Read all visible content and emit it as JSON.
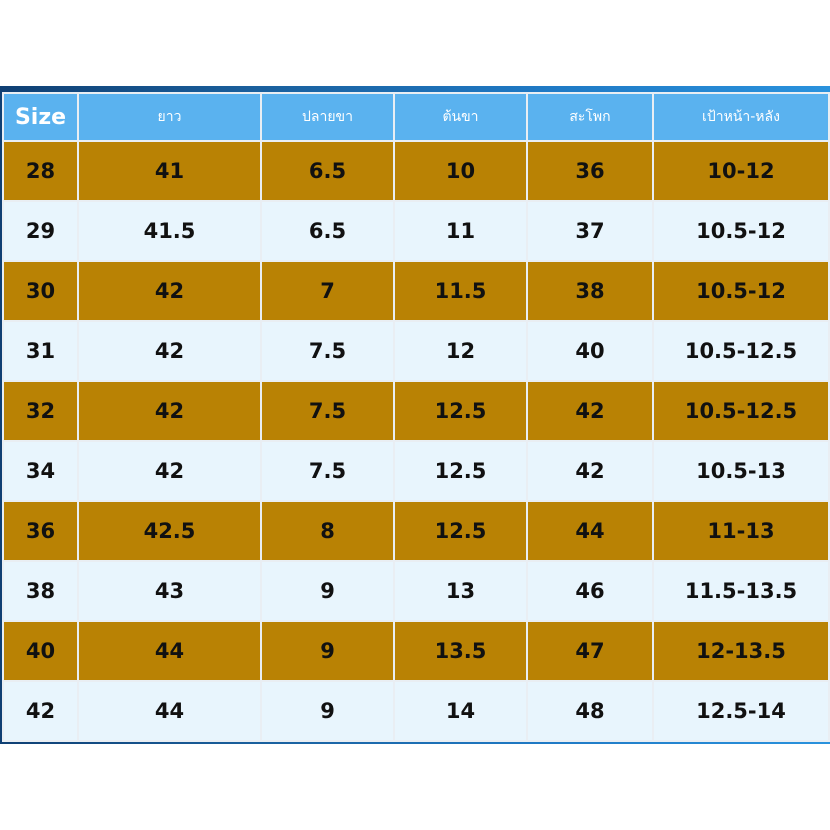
{
  "table": {
    "headers": [
      "Size",
      "ยาว",
      "ปลายขา",
      "ต้นขา",
      "สะโพก",
      "เป้าหน้า-หลัง"
    ],
    "rows": [
      [
        "28",
        "41",
        "6.5",
        "10",
        "36",
        "10-12"
      ],
      [
        "29",
        "41.5",
        "6.5",
        "11",
        "37",
        "10.5-12"
      ],
      [
        "30",
        "42",
        "7",
        "11.5",
        "38",
        "10.5-12"
      ],
      [
        "31",
        "42",
        "7.5",
        "12",
        "40",
        "10.5-12.5"
      ],
      [
        "32",
        "42",
        "7.5",
        "12.5",
        "42",
        "10.5-12.5"
      ],
      [
        "34",
        "42",
        "7.5",
        "12.5",
        "42",
        "10.5-13"
      ],
      [
        "36",
        "42.5",
        "8",
        "12.5",
        "44",
        "11-13"
      ],
      [
        "38",
        "43",
        "9",
        "13",
        "46",
        "11.5-13.5"
      ],
      [
        "40",
        "44",
        "9",
        "13.5",
        "47",
        "12-13.5"
      ],
      [
        "42",
        "44",
        "9",
        "14",
        "48",
        "12.5-14"
      ]
    ]
  },
  "colors": {
    "header_bg": "#5ab2ef",
    "row_gold": "#b98204",
    "row_light": "#e8f5fd",
    "frame_blue": "#1f79c4"
  }
}
